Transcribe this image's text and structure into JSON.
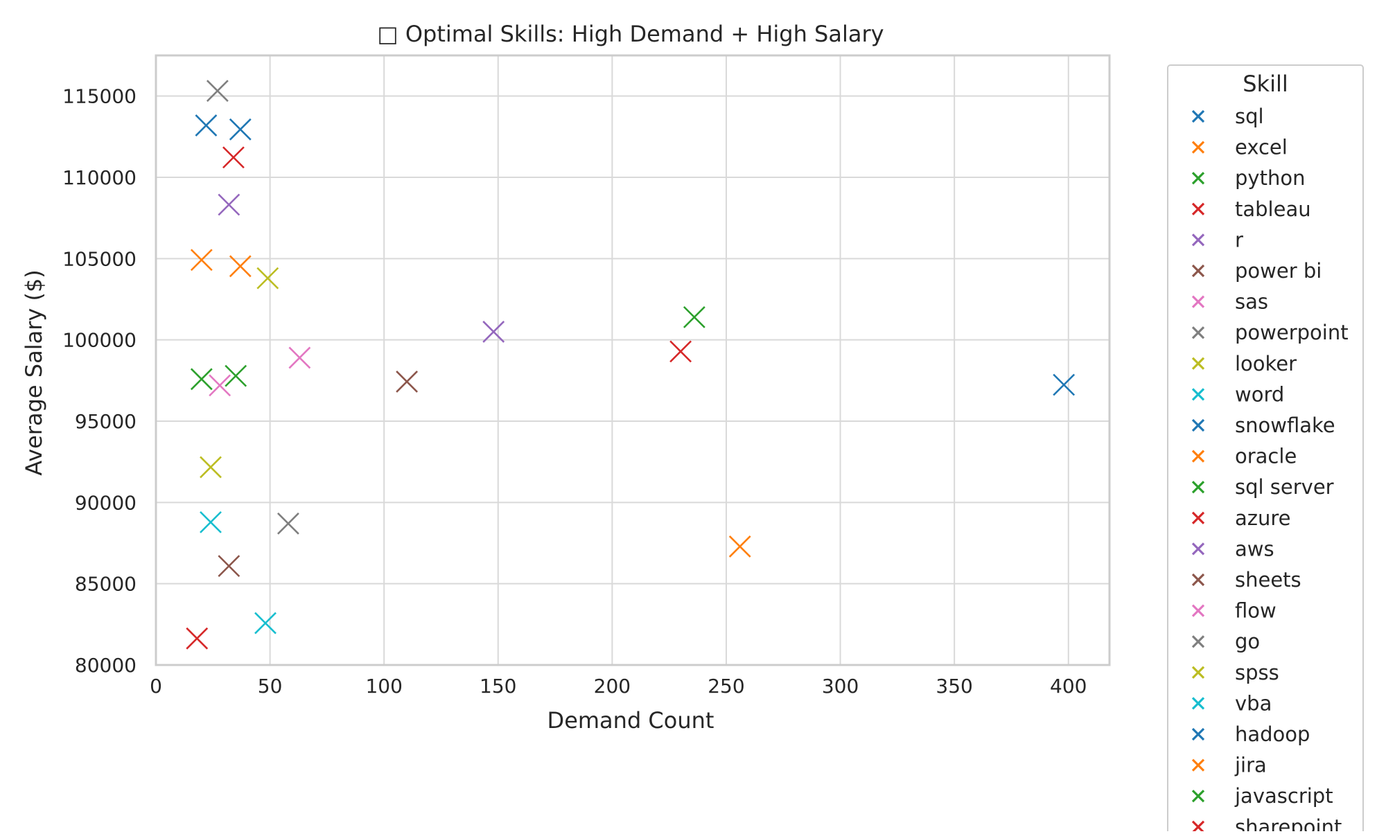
{
  "chart_data": {
    "type": "scatter",
    "title": "□ Optimal Skills: High Demand + High Salary",
    "xlabel": "Demand Count",
    "ylabel": "Average Salary ($)",
    "xlim": [
      0,
      418
    ],
    "ylim": [
      80000,
      117500
    ],
    "xticks": [
      0,
      50,
      100,
      150,
      200,
      250,
      300,
      350,
      400
    ],
    "yticks": [
      80000,
      85000,
      90000,
      95000,
      100000,
      105000,
      110000,
      115000
    ],
    "grid": true,
    "marker": "x",
    "legend": {
      "title": "Skill",
      "placement": "outside-right"
    },
    "series": [
      {
        "name": "sql",
        "color": "#1f77b4",
        "x": 398,
        "y": 97237
      },
      {
        "name": "excel",
        "color": "#ff7f0e",
        "x": 256,
        "y": 87288
      },
      {
        "name": "python",
        "color": "#2ca02c",
        "x": 236,
        "y": 101397
      },
      {
        "name": "tableau",
        "color": "#d62728",
        "x": 230,
        "y": 99288
      },
      {
        "name": "r",
        "color": "#9467bd",
        "x": 148,
        "y": 100499
      },
      {
        "name": "power bi",
        "color": "#8c564b",
        "x": 110,
        "y": 97431
      },
      {
        "name": "sas",
        "color": "#e377c2",
        "x": 63,
        "y": 98902
      },
      {
        "name": "powerpoint",
        "color": "#7f7f7f",
        "x": 58,
        "y": 88701
      },
      {
        "name": "looker",
        "color": "#bcbd22",
        "x": 49,
        "y": 103795
      },
      {
        "name": "word",
        "color": "#17becf",
        "x": 48,
        "y": 82576
      },
      {
        "name": "snowflake",
        "color": "#1f77b4",
        "x": 37,
        "y": 112948
      },
      {
        "name": "oracle",
        "color": "#ff7f0e",
        "x": 37,
        "y": 104534
      },
      {
        "name": "sql server",
        "color": "#2ca02c",
        "x": 35,
        "y": 97786
      },
      {
        "name": "azure",
        "color": "#d62728",
        "x": 34,
        "y": 111225
      },
      {
        "name": "aws",
        "color": "#9467bd",
        "x": 32,
        "y": 108317
      },
      {
        "name": "sheets",
        "color": "#8c564b",
        "x": 32,
        "y": 86088
      },
      {
        "name": "flow",
        "color": "#e377c2",
        "x": 28,
        "y": 97200
      },
      {
        "name": "go",
        "color": "#7f7f7f",
        "x": 27,
        "y": 115320
      },
      {
        "name": "spss",
        "color": "#bcbd22",
        "x": 24,
        "y": 92170
      },
      {
        "name": "vba",
        "color": "#17becf",
        "x": 24,
        "y": 88783
      },
      {
        "name": "hadoop",
        "color": "#1f77b4",
        "x": 22,
        "y": 113193
      },
      {
        "name": "jira",
        "color": "#ff7f0e",
        "x": 20,
        "y": 104918
      },
      {
        "name": "javascript",
        "color": "#2ca02c",
        "x": 20,
        "y": 97587
      },
      {
        "name": "sharepoint",
        "color": "#d62728",
        "x": 18,
        "y": 81634
      }
    ]
  }
}
